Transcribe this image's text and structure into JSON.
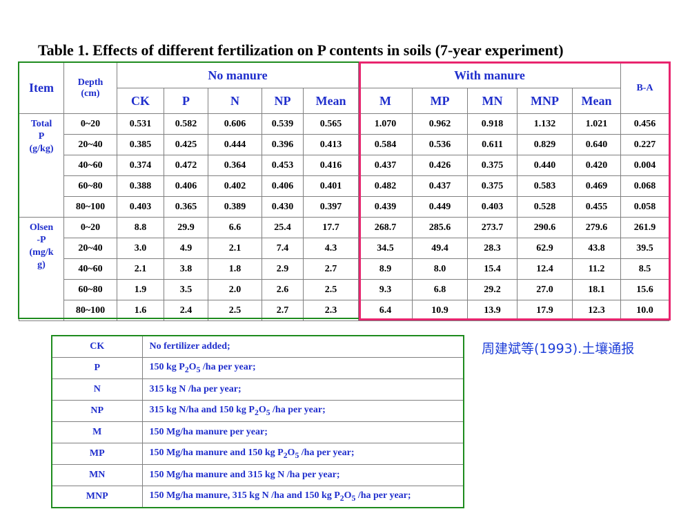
{
  "title": "Table 1. Effects of different fertilization on P contents in soils (7-year experiment)",
  "header": {
    "item": "Item",
    "depth": "Depth",
    "depth_unit": "(cm)",
    "no_manure": "No manure",
    "with_manure": "With manure",
    "ba": "B-A",
    "columns": [
      "CK",
      "P",
      "N",
      "NP",
      "Mean",
      "M",
      "MP",
      "MN",
      "MNP",
      "Mean"
    ]
  },
  "groups": [
    {
      "label_lines": [
        "Total",
        "P",
        "(g/kg)"
      ],
      "rows": [
        {
          "depth": "0~20",
          "values": [
            "0.531",
            "0.582",
            "0.606",
            "0.539",
            "0.565",
            "1.070",
            "0.962",
            "0.918",
            "1.132",
            "1.021",
            "0.456"
          ]
        },
        {
          "depth": "20~40",
          "values": [
            "0.385",
            "0.425",
            "0.444",
            "0.396",
            "0.413",
            "0.584",
            "0.536",
            "0.611",
            "0.829",
            "0.640",
            "0.227"
          ]
        },
        {
          "depth": "40~60",
          "values": [
            "0.374",
            "0.472",
            "0.364",
            "0.453",
            "0.416",
            "0.437",
            "0.426",
            "0.375",
            "0.440",
            "0.420",
            "0.004"
          ]
        },
        {
          "depth": "60~80",
          "values": [
            "0.388",
            "0.406",
            "0.402",
            "0.406",
            "0.401",
            "0.482",
            "0.437",
            "0.375",
            "0.583",
            "0.469",
            "0.068"
          ]
        },
        {
          "depth": "80~100",
          "values": [
            "0.403",
            "0.365",
            "0.389",
            "0.430",
            "0.397",
            "0.439",
            "0.449",
            "0.403",
            "0.528",
            "0.455",
            "0.058"
          ]
        }
      ]
    },
    {
      "label_lines": [
        "Olsen",
        "-P",
        "(mg/k",
        "g)"
      ],
      "rows": [
        {
          "depth": "0~20",
          "values": [
            "8.8",
            "29.9",
            "6.6",
            "25.4",
            "17.7",
            "268.7",
            "285.6",
            "273.7",
            "290.6",
            "279.6",
            "261.9"
          ]
        },
        {
          "depth": "20~40",
          "values": [
            "3.0",
            "4.9",
            "2.1",
            "7.4",
            "4.3",
            "34.5",
            "49.4",
            "28.3",
            "62.9",
            "43.8",
            "39.5"
          ]
        },
        {
          "depth": "40~60",
          "values": [
            "2.1",
            "3.8",
            "1.8",
            "2.9",
            "2.7",
            "8.9",
            "8.0",
            "15.4",
            "12.4",
            "11.2",
            "8.5"
          ]
        },
        {
          "depth": "60~80",
          "values": [
            "1.9",
            "3.5",
            "2.0",
            "2.6",
            "2.5",
            "9.3",
            "6.8",
            "29.2",
            "27.0",
            "18.1",
            "15.6"
          ]
        },
        {
          "depth": "80~100",
          "values": [
            "1.6",
            "2.4",
            "2.5",
            "2.7",
            "2.3",
            "6.4",
            "10.9",
            "13.9",
            "17.9",
            "12.3",
            "10.0"
          ]
        }
      ]
    }
  ],
  "legend": [
    {
      "code": "CK",
      "desc_html": "No fertilizer added;"
    },
    {
      "code": "P",
      "desc_html": "150 kg P<sub>2</sub>O<sub>5</sub> /ha per year;"
    },
    {
      "code": "N",
      "desc_html": "315 kg N /ha per year;"
    },
    {
      "code": "NP",
      "desc_html": "315 kg N/ha and 150 kg P<sub>2</sub>O<sub>5</sub> /ha per year;"
    },
    {
      "code": "M",
      "desc_html": "150 Mg/ha manure per year;"
    },
    {
      "code": "MP",
      "desc_html": "150 Mg/ha manure and 150 kg P<sub>2</sub>O<sub>5</sub> /ha per year;"
    },
    {
      "code": "MN",
      "desc_html": "150 Mg/ha manure and 315 kg N /ha per year;"
    },
    {
      "code": "MNP",
      "desc_html": "150 Mg/ha manure, 315 kg N /ha and 150 kg P<sub>2</sub>O<sub>5</sub> /ha per year;"
    }
  ],
  "source": "周建斌等(1993).土壤通报",
  "colors": {
    "header_text": "#1f2ecc",
    "green_frame": "#1e8b1e",
    "pink_frame": "#e8246e",
    "source_text": "#1f3fd8"
  }
}
